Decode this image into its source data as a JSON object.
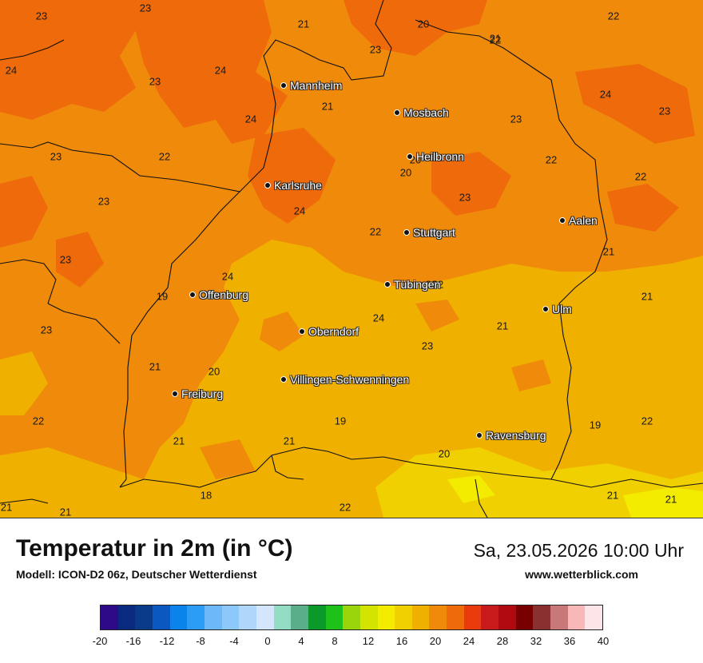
{
  "title": "Temperatur in 2m (in °C)",
  "model": "Modell: ICON-D2 06z, Deutscher Wetterdienst",
  "datetime": "Sa, 23.05.2026 10:00 Uhr",
  "site": "www.wetterblick.com",
  "cities": [
    {
      "name": "Mannheim"
    },
    {
      "name": "Mosbach"
    },
    {
      "name": "Heilbronn"
    },
    {
      "name": "Karlsruhe"
    },
    {
      "name": "Stuttgart"
    },
    {
      "name": "Aalen"
    },
    {
      "name": "Tübingen"
    },
    {
      "name": "Offenburg"
    },
    {
      "name": "Ulm"
    },
    {
      "name": "Oberndorf"
    },
    {
      "name": "Villingen-Schwenningen"
    },
    {
      "name": "Freiburg"
    },
    {
      "name": "Ravensburg"
    }
  ],
  "values": [
    "23",
    "23",
    "21",
    "20",
    "22",
    "24",
    "23",
    "24",
    "23",
    "22",
    "21",
    "24",
    "23",
    "24",
    "23",
    "23",
    "22",
    "20",
    "22",
    "23",
    "23",
    "24",
    "22",
    "23",
    "24",
    "21",
    "22",
    "19",
    "24",
    "23",
    "21",
    "21",
    "23",
    "21",
    "20",
    "19",
    "19",
    "22",
    "22",
    "21",
    "21",
    "20",
    "18",
    "22",
    "21",
    "21",
    "21",
    "21",
    "20",
    "20",
    "21",
    "22"
  ],
  "legend": {
    "colors": [
      "#2e0a88",
      "#0a2a80",
      "#0a3a8a",
      "#0a58c0",
      "#0a84ea",
      "#2a9cf5",
      "#6cb8f8",
      "#8cc8fa",
      "#b0d6fc",
      "#d4e6fc",
      "#92dcc4",
      "#5aae8a",
      "#0a9a2a",
      "#1ec01a",
      "#9ad40a",
      "#d2e400",
      "#f4ec00",
      "#f0d000",
      "#f0b000",
      "#f08a0a",
      "#ef6a0a",
      "#e83a0a",
      "#c81a1a",
      "#b00a10",
      "#780000",
      "#8a3030",
      "#c87878",
      "#f8b8b8",
      "#fce4e8"
    ],
    "ticks": [
      "-20",
      "-16",
      "-12",
      "-8",
      "-4",
      "0",
      "4",
      "8",
      "12",
      "16",
      "20",
      "24",
      "28",
      "32",
      "36",
      "40"
    ]
  },
  "colors": {
    "warm": "#f08a0a",
    "warmer": "#ef6a0a",
    "mild": "#f0b000",
    "cool": "#f0d000",
    "yellow": "#f4ec00"
  }
}
